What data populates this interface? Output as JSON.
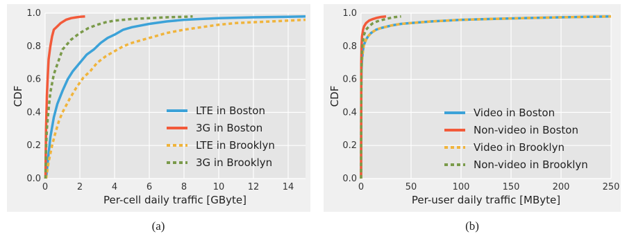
{
  "captions": [
    "(a)",
    "(b)"
  ],
  "chart_data": [
    {
      "type": "line",
      "title": "",
      "xlabel": "Per-cell daily traffic [GByte]",
      "ylabel": "CDF",
      "xlim": [
        0,
        15
      ],
      "ylim": [
        0,
        1
      ],
      "xticks": [
        "0",
        "2",
        "4",
        "6",
        "8",
        "10",
        "12",
        "14"
      ],
      "yticks": [
        "0.0",
        "0.2",
        "0.4",
        "0.6",
        "0.8",
        "1.0"
      ],
      "grid": true,
      "legend": "lower-right",
      "series": [
        {
          "name": "LTE in Boston",
          "color": "#3ca2d8",
          "dash": "solid",
          "x": [
            0.05,
            0.1,
            0.2,
            0.3,
            0.5,
            0.7,
            1.0,
            1.3,
            1.6,
            2.0,
            2.4,
            2.8,
            3.2,
            3.6,
            4.0,
            4.5,
            5.0,
            6.0,
            7.0,
            8.0,
            9.0,
            10.0,
            12.0,
            14.0,
            15.0
          ],
          "y": [
            0.0,
            0.05,
            0.15,
            0.25,
            0.37,
            0.45,
            0.53,
            0.6,
            0.65,
            0.7,
            0.75,
            0.78,
            0.82,
            0.85,
            0.87,
            0.9,
            0.915,
            0.935,
            0.95,
            0.96,
            0.965,
            0.97,
            0.975,
            0.978,
            0.98
          ]
        },
        {
          "name": "3G in Boston",
          "color": "#f25a3a",
          "dash": "solid",
          "x": [
            0.02,
            0.05,
            0.1,
            0.15,
            0.2,
            0.3,
            0.4,
            0.5,
            0.7,
            0.9,
            1.2,
            1.5,
            1.8,
            2.0,
            2.3
          ],
          "y": [
            0.0,
            0.3,
            0.5,
            0.62,
            0.72,
            0.8,
            0.86,
            0.9,
            0.92,
            0.94,
            0.96,
            0.97,
            0.975,
            0.978,
            0.98
          ]
        },
        {
          "name": "LTE in Brooklyn",
          "color": "#f0b43c",
          "dash": "dashed",
          "x": [
            0.05,
            0.1,
            0.2,
            0.4,
            0.6,
            0.8,
            1.0,
            1.4,
            1.8,
            2.2,
            2.6,
            3.0,
            3.5,
            4.0,
            4.5,
            5.0,
            6.0,
            7.0,
            8.0,
            9.0,
            10.0,
            11.0,
            12.0,
            13.0,
            14.0,
            15.0
          ],
          "y": [
            0.0,
            0.03,
            0.1,
            0.2,
            0.28,
            0.35,
            0.4,
            0.48,
            0.55,
            0.61,
            0.65,
            0.7,
            0.74,
            0.77,
            0.8,
            0.82,
            0.85,
            0.88,
            0.9,
            0.915,
            0.93,
            0.94,
            0.945,
            0.95,
            0.955,
            0.96
          ]
        },
        {
          "name": "3G in Brooklyn",
          "color": "#7a9a4a",
          "dash": "dashed",
          "x": [
            0.02,
            0.05,
            0.1,
            0.2,
            0.3,
            0.5,
            0.8,
            1.0,
            1.5,
            2.0,
            2.5,
            3.0,
            3.5,
            4.0,
            5.0,
            6.0,
            7.0,
            8.0,
            8.5
          ],
          "y": [
            0.0,
            0.18,
            0.3,
            0.42,
            0.52,
            0.63,
            0.72,
            0.78,
            0.84,
            0.88,
            0.91,
            0.93,
            0.945,
            0.955,
            0.965,
            0.97,
            0.975,
            0.978,
            0.98
          ]
        }
      ]
    },
    {
      "type": "line",
      "title": "",
      "xlabel": "Per-user daily traffic [MByte]",
      "ylabel": "CDF",
      "xlim": [
        0,
        250
      ],
      "ylim": [
        0,
        1
      ],
      "xticks": [
        "0",
        "50",
        "100",
        "150",
        "200",
        "250"
      ],
      "yticks": [
        "0.0",
        "0.2",
        "0.4",
        "0.6",
        "0.8",
        "1.0"
      ],
      "grid": true,
      "legend": "lower-right",
      "series": [
        {
          "name": "Video in Boston",
          "color": "#3ca2d8",
          "dash": "solid",
          "x": [
            0,
            0.2,
            0.5,
            1,
            2,
            3,
            5,
            7,
            10,
            15,
            20,
            30,
            40,
            50,
            70,
            100,
            130,
            160,
            200,
            250
          ],
          "y": [
            0.0,
            0.55,
            0.66,
            0.72,
            0.78,
            0.81,
            0.84,
            0.86,
            0.88,
            0.9,
            0.91,
            0.925,
            0.935,
            0.94,
            0.95,
            0.96,
            0.965,
            0.97,
            0.975,
            0.98
          ]
        },
        {
          "name": "Non-video in Boston",
          "color": "#f25a3a",
          "dash": "solid",
          "x": [
            0,
            0.2,
            0.5,
            1,
            2,
            3,
            5,
            8,
            12,
            16,
            20,
            25
          ],
          "y": [
            0.0,
            0.7,
            0.8,
            0.86,
            0.9,
            0.92,
            0.94,
            0.955,
            0.965,
            0.972,
            0.977,
            0.98
          ]
        },
        {
          "name": "Video in Brooklyn",
          "color": "#f0b43c",
          "dash": "dashed",
          "x": [
            0,
            0.2,
            0.5,
            1,
            2,
            3,
            5,
            7,
            10,
            15,
            20,
            30,
            40,
            50,
            70,
            100,
            130,
            160,
            200,
            250
          ],
          "y": [
            0.0,
            0.55,
            0.66,
            0.72,
            0.78,
            0.81,
            0.84,
            0.86,
            0.88,
            0.9,
            0.91,
            0.925,
            0.935,
            0.94,
            0.95,
            0.96,
            0.965,
            0.97,
            0.975,
            0.98
          ]
        },
        {
          "name": "Non-video in Brooklyn",
          "color": "#7a9a4a",
          "dash": "dashed",
          "x": [
            0,
            0.3,
            0.7,
            1.5,
            3,
            5,
            8,
            12,
            18,
            25,
            32,
            40
          ],
          "y": [
            0.0,
            0.65,
            0.75,
            0.82,
            0.87,
            0.9,
            0.92,
            0.94,
            0.955,
            0.965,
            0.975,
            0.98
          ]
        }
      ]
    }
  ]
}
